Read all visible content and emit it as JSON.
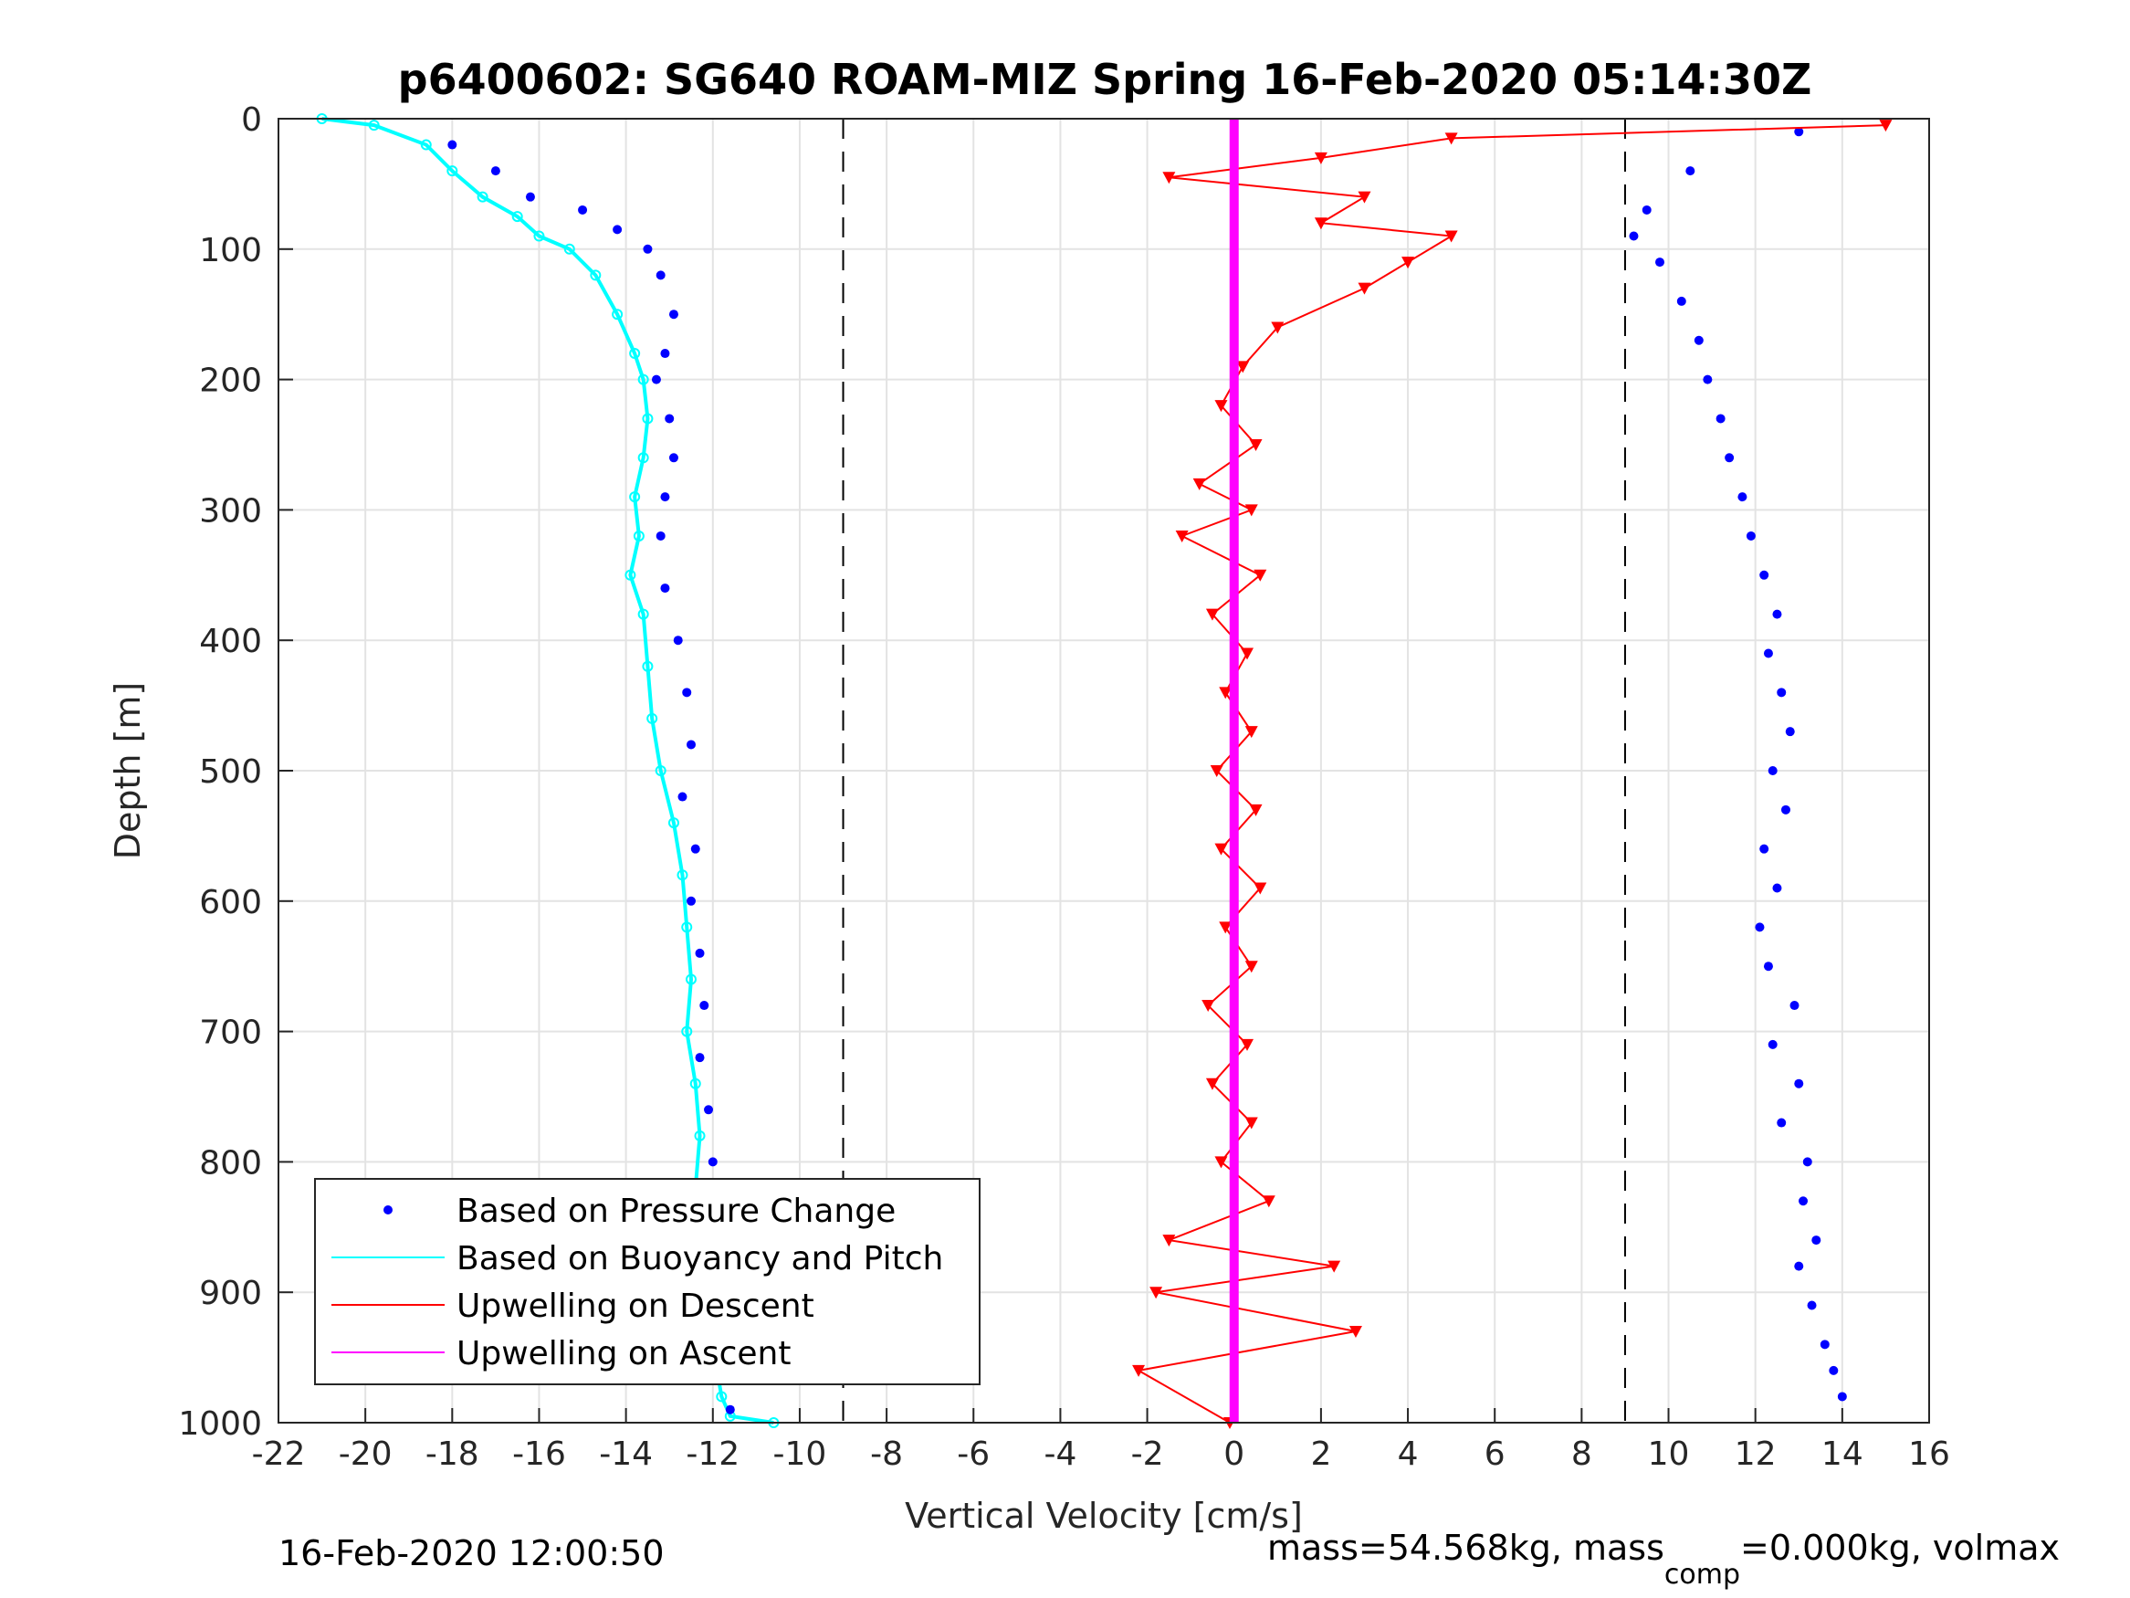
{
  "chart_data": {
    "type": "scatter",
    "title": "p6400602: SG640 ROAM-MIZ Spring 16-Feb-2020 05:14:30Z",
    "xlabel": "Vertical Velocity [cm/s]",
    "ylabel": "Depth [m]",
    "xlim": [
      -22,
      16
    ],
    "ylim": [
      0,
      1000
    ],
    "y_reversed": true,
    "grid": true,
    "x_ticks": [
      "-22",
      "-20",
      "-18",
      "-16",
      "-14",
      "-12",
      "-10",
      "-8",
      "-6",
      "-4",
      "-2",
      "0",
      "2",
      "4",
      "6",
      "8",
      "10",
      "12",
      "14",
      "16"
    ],
    "y_ticks": [
      "0",
      "100",
      "200",
      "300",
      "400",
      "500",
      "600",
      "700",
      "800",
      "900",
      "1000"
    ],
    "reference_lines_x": [
      -9,
      9
    ],
    "legend": {
      "position": "bottom-left",
      "entries": [
        {
          "label": "Based on Pressure Change",
          "color": "#0000ff",
          "style": "dot"
        },
        {
          "label": "Based on Buoyancy and Pitch",
          "color": "#00ffff",
          "style": "line"
        },
        {
          "label": "Upwelling on Descent",
          "color": "#ff0000",
          "style": "line"
        },
        {
          "label": "Upwelling on Ascent",
          "color": "#ff00ff",
          "style": "line"
        }
      ]
    },
    "series": [
      {
        "name": "Based on Buoyancy and Pitch",
        "color": "#00ffff",
        "x": [
          -21,
          -19.8,
          -18.6,
          -18,
          -17.3,
          -16.5,
          -16,
          -15.3,
          -14.7,
          -14.2,
          -13.8,
          -13.6,
          -13.5,
          -13.6,
          -13.8,
          -13.7,
          -13.9,
          -13.6,
          -13.5,
          -13.4,
          -13.2,
          -12.9,
          -12.7,
          -12.6,
          -12.5,
          -12.6,
          -12.4,
          -12.3,
          -12.4,
          -12.2,
          -12.3,
          -12.1,
          -11.9,
          -11.8,
          -11.6,
          -10.6
        ],
        "y": [
          0,
          5,
          20,
          40,
          60,
          75,
          90,
          100,
          120,
          150,
          180,
          200,
          230,
          260,
          290,
          320,
          350,
          380,
          420,
          460,
          500,
          540,
          580,
          620,
          660,
          700,
          740,
          780,
          820,
          860,
          900,
          930,
          960,
          980,
          995,
          1000
        ]
      },
      {
        "name": "Based on Pressure Change",
        "color": "#0000ff",
        "x": [
          -18,
          -17,
          -16.2,
          -15,
          -14.2,
          -13.5,
          -13.2,
          -12.9,
          -13.1,
          -13.3,
          -13.0,
          -12.9,
          -13.1,
          -13.2,
          -13.1,
          -12.8,
          -12.6,
          -12.5,
          -12.7,
          -12.4,
          -12.5,
          -12.3,
          -12.2,
          -12.3,
          -12.1,
          -12.0,
          -11.8,
          -11.9,
          -11.7,
          -11.6,
          13.0,
          10.5,
          9.5,
          9.2,
          9.8,
          10.3,
          10.7,
          10.9,
          11.2,
          11.4,
          11.7,
          11.9,
          12.2,
          12.5,
          12.3,
          12.6,
          12.8,
          12.4,
          12.7,
          12.2,
          12.5,
          12.1,
          12.3,
          12.9,
          12.4,
          13.0,
          12.6,
          13.2,
          13.1,
          13.4,
          13.0,
          13.3,
          13.6,
          13.8,
          14.0
        ],
        "y": [
          20,
          40,
          60,
          70,
          85,
          100,
          120,
          150,
          180,
          200,
          230,
          260,
          290,
          320,
          360,
          400,
          440,
          480,
          520,
          560,
          600,
          640,
          680,
          720,
          760,
          800,
          850,
          900,
          950,
          990,
          10,
          40,
          70,
          90,
          110,
          140,
          170,
          200,
          230,
          260,
          290,
          320,
          350,
          380,
          410,
          440,
          470,
          500,
          530,
          560,
          590,
          620,
          650,
          680,
          710,
          740,
          770,
          800,
          830,
          860,
          880,
          910,
          940,
          960,
          980
        ]
      },
      {
        "name": "Upwelling on Descent",
        "color": "#ff0000",
        "x": [
          15,
          5,
          2,
          -1.5,
          3,
          2,
          5,
          4,
          3,
          1,
          0.2,
          -0.3,
          0.5,
          -0.8,
          0.4,
          -1.2,
          0.6,
          -0.5,
          0.3,
          -0.2,
          0.4,
          -0.4,
          0.5,
          -0.3,
          0.6,
          -0.2,
          0.4,
          -0.6,
          0.3,
          -0.5,
          0.4,
          -0.3,
          0.8,
          -1.5,
          2.3,
          -1.8,
          2.8,
          -2.2,
          -0.1
        ],
        "y": [
          5,
          15,
          30,
          45,
          60,
          80,
          90,
          110,
          130,
          160,
          190,
          220,
          250,
          280,
          300,
          320,
          350,
          380,
          410,
          440,
          470,
          500,
          530,
          560,
          590,
          620,
          650,
          680,
          710,
          740,
          770,
          800,
          830,
          860,
          880,
          900,
          930,
          960,
          1000
        ]
      },
      {
        "name": "Upwelling on Ascent",
        "color": "#ff00ff",
        "x": [
          0,
          0,
          0,
          0,
          0,
          0,
          0,
          0,
          0,
          0,
          0
        ],
        "y": [
          0,
          100,
          200,
          300,
          400,
          500,
          600,
          700,
          800,
          900,
          1000
        ]
      }
    ],
    "annotations": {
      "footer_left": "16-Feb-2020 12:00:50",
      "footer_right_prefix": "mass=54.568kg, mass",
      "footer_right_sub": "comp",
      "footer_right_suffix": "=0.000kg, volmax"
    }
  }
}
